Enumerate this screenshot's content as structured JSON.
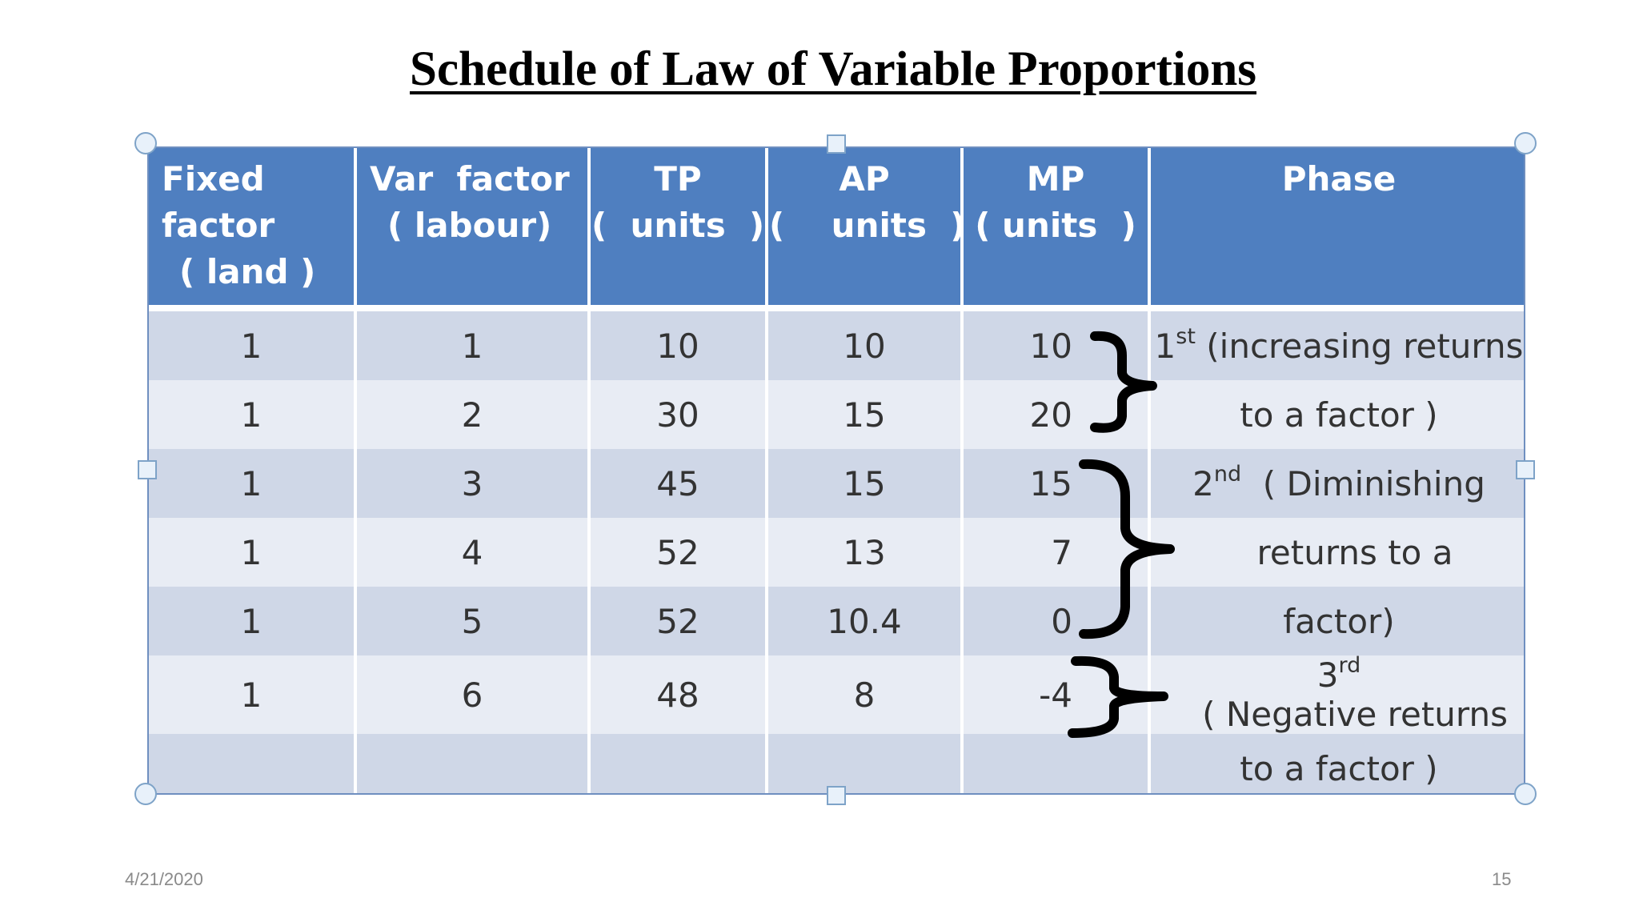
{
  "title": "Schedule of Law of Variable Proportions",
  "table": {
    "headers": {
      "fixed": [
        "Fixed",
        "factor",
        "( land )"
      ],
      "var": [
        "Var  factor",
        "( labour)"
      ],
      "tp": [
        "TP",
        "(  units  )"
      ],
      "ap": [
        "AP",
        "(    units  )"
      ],
      "mp": [
        "MP",
        "( units  )"
      ],
      "phase": [
        "Phase"
      ]
    },
    "rows": [
      {
        "fixed": "1",
        "var": "1",
        "tp": "10",
        "ap": "10",
        "mp": "10"
      },
      {
        "fixed": "1",
        "var": "2",
        "tp": "30",
        "ap": "15",
        "mp": "20"
      },
      {
        "fixed": "1",
        "var": "3",
        "tp": "45",
        "ap": "15",
        "mp": "15"
      },
      {
        "fixed": "1",
        "var": "4",
        "tp": "52",
        "ap": "13",
        "mp": "7"
      },
      {
        "fixed": "1",
        "var": "5",
        "tp": "52",
        "ap": "10.4",
        "mp": "0"
      },
      {
        "fixed": "1",
        "var": "6",
        "tp": "48",
        "ap": "8",
        "mp": "-4"
      },
      {
        "fixed": "",
        "var": "",
        "tp": "",
        "ap": "",
        "mp": ""
      }
    ],
    "phases": {
      "p1_ord": "1",
      "p1_sup": "st",
      "p1_line1": " (increasing returns",
      "p1_line2": "to a factor )",
      "p2_ord": "2",
      "p2_sup": "nd",
      "p2_line1": "  ( Diminishing",
      "p2_line2": "returns to a",
      "p2_line3": "factor)",
      "p3_ord": "3",
      "p3_sup": "rd",
      "p3_line1": "   ( Negative returns",
      "p3_line2": "to a factor )"
    }
  },
  "footer": {
    "date": "4/21/2020",
    "page": "15"
  },
  "colors": {
    "header_bg": "#4f7fc0",
    "row_dark": "#cfd7e7",
    "row_light": "#e8ecf4",
    "brace": "#000000"
  }
}
